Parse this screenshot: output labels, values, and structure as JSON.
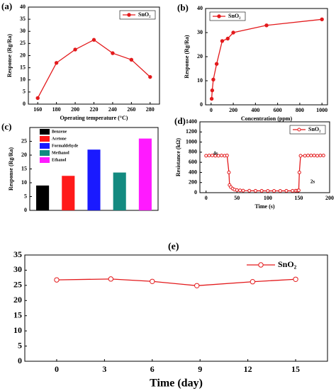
{
  "chart_data": [
    {
      "type": "line",
      "panel_label": "(a)",
      "xlabel": "Operating temperature (°C)",
      "ylabel": "Response (Rg/Ra)",
      "x": [
        160,
        180,
        200,
        220,
        240,
        260,
        280
      ],
      "series": [
        {
          "name": "SnO₂",
          "color": "#e31a1c",
          "values": [
            2.5,
            17,
            22.5,
            26.5,
            21,
            18.3,
            11.2
          ]
        }
      ],
      "xlim": [
        150,
        290
      ],
      "xticks": [
        160,
        180,
        200,
        220,
        240,
        260,
        280
      ],
      "ylim": [
        0,
        40
      ],
      "yticks": [
        0,
        5,
        10,
        15,
        20,
        25,
        30,
        35,
        40
      ],
      "legend": "upper right"
    },
    {
      "type": "line",
      "panel_label": "(b)",
      "xlabel": "Concentration (ppm)",
      "ylabel": "Response (Rg/Ra)",
      "x": [
        5,
        10,
        20,
        50,
        100,
        150,
        200,
        500,
        1000
      ],
      "series": [
        {
          "name": "SnO₂",
          "color": "#e31a1c",
          "values": [
            2.5,
            6,
            10.5,
            17,
            26.5,
            27.5,
            30,
            33,
            35.5
          ]
        }
      ],
      "xlim": [
        -50,
        1050
      ],
      "xticks": [
        0,
        200,
        400,
        600,
        800,
        1000
      ],
      "ylim": [
        0,
        40
      ],
      "yticks": [
        0,
        10,
        20,
        30,
        40
      ],
      "legend": "upper left"
    },
    {
      "type": "bar",
      "panel_label": "(c)",
      "ylabel": "Response (Rg/Ra)",
      "categories": [
        "Benzene",
        "Acetone",
        "Formaldehyde",
        "Methanol",
        "Ethanol"
      ],
      "values": [
        9,
        12.5,
        22,
        13.7,
        26
      ],
      "colors": [
        "#000000",
        "#ff1a1a",
        "#1a1aff",
        "#138a80",
        "#ff1aff"
      ],
      "ylim": [
        0,
        30
      ],
      "yticks": [
        0,
        5,
        10,
        15,
        20,
        25
      ],
      "legend": "upper left"
    },
    {
      "type": "line",
      "panel_label": "(d)",
      "xlabel": "Time (s)",
      "ylabel": "Resistance (kΩ)",
      "x": [
        0,
        5,
        10,
        15,
        20,
        25,
        30,
        34,
        37,
        38,
        40,
        43,
        46,
        50,
        55,
        60,
        70,
        80,
        90,
        100,
        110,
        120,
        130,
        140,
        145,
        148,
        150,
        151,
        153,
        160,
        165,
        170,
        175,
        180,
        185,
        190
      ],
      "series": [
        {
          "name": "SnO₂",
          "color": "#e31a1c",
          "values": [
            730,
            735,
            735,
            730,
            730,
            735,
            730,
            735,
            400,
            150,
            110,
            80,
            60,
            50,
            45,
            40,
            38,
            37,
            36,
            35,
            35,
            35,
            36,
            36,
            38,
            40,
            45,
            400,
            730,
            730,
            735,
            735,
            735,
            730,
            735,
            735
          ]
        }
      ],
      "xlim": [
        -10,
        200
      ],
      "xticks": [
        0,
        50,
        100,
        150,
        200
      ],
      "ylim": [
        0,
        1400
      ],
      "yticks": [
        0,
        200,
        400,
        600,
        800,
        1000,
        1200,
        1400
      ],
      "legend": "upper right",
      "annotations": [
        "4s",
        "2s"
      ]
    },
    {
      "type": "line",
      "panel_label": "(e)",
      "xlabel": "Time (day)",
      "x": [
        0,
        3.4,
        6,
        8.8,
        12.3,
        15
      ],
      "series": [
        {
          "name": "SnO₂",
          "color": "#e31a1c",
          "values": [
            26.8,
            27.1,
            26.3,
            24.9,
            26.2,
            27.0
          ]
        }
      ],
      "xlim": [
        -2,
        17
      ],
      "xticks": [
        0,
        3,
        6,
        9,
        12,
        15
      ],
      "ylim": [
        0,
        35
      ],
      "yticks": [
        0,
        5,
        10,
        15,
        20,
        25,
        30,
        35
      ],
      "legend": "upper right"
    }
  ]
}
